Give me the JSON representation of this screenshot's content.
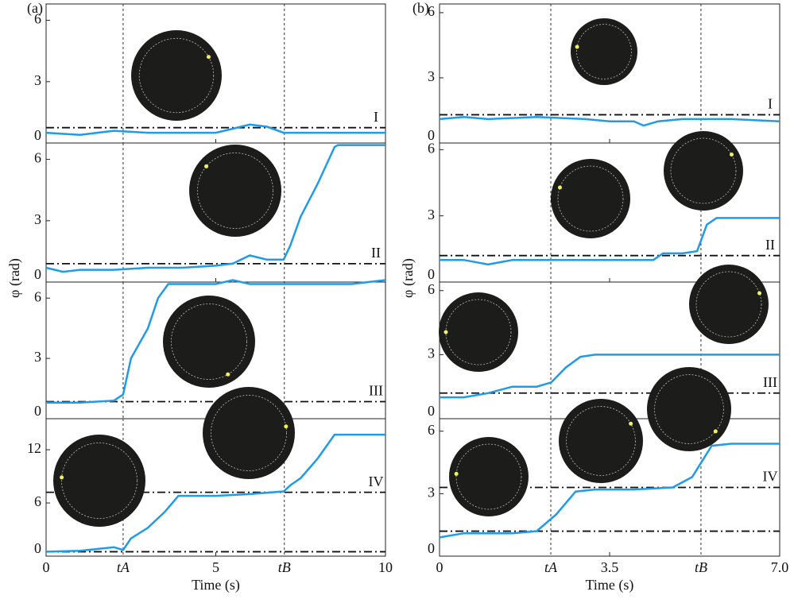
{
  "chart_data": [
    {
      "type": "line",
      "panel_label": "(a)",
      "ylabel": "φ (rad)",
      "xlabel": "Time (s)",
      "color": "#1f9be8",
      "xlim": [
        0,
        10
      ],
      "xticks": [
        0,
        {
          "value": 2.27,
          "label": "tA"
        },
        5,
        {
          "value": 7.02,
          "label": "tB"
        },
        10
      ],
      "panels": [
        {
          "annotation": "I",
          "ylim": [
            0,
            6.8
          ],
          "yticks": [
            0,
            3,
            6
          ],
          "hlines": [
            0.75
          ],
          "x": [
            0,
            1,
            2,
            3,
            4,
            5,
            5.5,
            6,
            6.5,
            7,
            8,
            9,
            10
          ],
          "values": [
            0.5,
            0.4,
            0.6,
            0.5,
            0.5,
            0.5,
            0.7,
            0.9,
            0.8,
            0.5,
            0.5,
            0.5,
            0.5
          ]
        },
        {
          "annotation": "II",
          "ylim": [
            0,
            6.8
          ],
          "yticks": [
            0,
            3,
            6
          ],
          "hlines": [
            0.9
          ],
          "x": [
            0,
            0.5,
            1,
            2,
            3,
            4,
            5,
            5.5,
            6,
            6.5,
            7,
            7.2,
            7.5,
            8,
            8.5,
            8.6,
            9,
            10
          ],
          "values": [
            0.7,
            0.5,
            0.6,
            0.6,
            0.7,
            0.7,
            0.8,
            0.9,
            1.3,
            1.1,
            1.1,
            1.8,
            3.2,
            4.8,
            6.6,
            6.7,
            6.7,
            6.7
          ]
        },
        {
          "annotation": "III",
          "ylim": [
            0,
            6.8
          ],
          "yticks": [
            0,
            3,
            6
          ],
          "hlines": [
            0.85
          ],
          "x": [
            0,
            1,
            2,
            2.27,
            2.5,
            3,
            3.3,
            3.6,
            4,
            5,
            5.5,
            6,
            7,
            8,
            9,
            10
          ],
          "values": [
            0.8,
            0.8,
            0.9,
            1.2,
            3.0,
            4.5,
            6.0,
            6.7,
            6.7,
            6.7,
            6.9,
            6.7,
            6.7,
            6.7,
            6.7,
            6.9
          ]
        },
        {
          "annotation": "IV",
          "ylim": [
            0,
            15.5
          ],
          "yticks": [
            0,
            6,
            12
          ],
          "hlines": [
            0.5,
            7.2
          ],
          "x": [
            0,
            1,
            2,
            2.27,
            2.5,
            3,
            3.5,
            3.9,
            4,
            5,
            6,
            7,
            7.2,
            7.5,
            8,
            8.5,
            9,
            10
          ],
          "values": [
            0.5,
            0.6,
            1.0,
            0.7,
            2.0,
            3.2,
            5.0,
            6.8,
            6.8,
            6.8,
            7.0,
            7.3,
            8.0,
            8.8,
            11,
            13.7,
            13.7,
            13.7
          ]
        }
      ]
    },
    {
      "type": "line",
      "panel_label": "(b)",
      "ylabel": "φ (rad)",
      "xlabel": "Time (s)",
      "color": "#1f9be8",
      "xlim": [
        0,
        7
      ],
      "xticks": [
        0,
        {
          "value": 2.29,
          "label": "tA"
        },
        3.5,
        {
          "value": 5.38,
          "label": "tB"
        },
        {
          "value": 7,
          "label": "7.0"
        }
      ],
      "panels": [
        {
          "annotation": "I",
          "ylim": [
            0,
            6.4
          ],
          "yticks": [
            0,
            3,
            6
          ],
          "hlines": [
            1.3
          ],
          "x": [
            0,
            0.5,
            1,
            2,
            3,
            3.5,
            4,
            4.2,
            4.5,
            5,
            6,
            7
          ],
          "values": [
            1.1,
            1.2,
            1.1,
            1.2,
            1.1,
            1.0,
            1.0,
            0.8,
            1.0,
            1.1,
            1.1,
            1.0
          ]
        },
        {
          "annotation": "II",
          "ylim": [
            0,
            6.3
          ],
          "yticks": [
            0,
            3,
            6
          ],
          "hlines": [
            1.2
          ],
          "x": [
            0,
            0.5,
            1,
            1.5,
            2,
            3,
            4,
            4.4,
            4.6,
            5,
            5.3,
            5.5,
            5.7,
            6,
            7
          ],
          "values": [
            1.0,
            1.0,
            0.8,
            1.0,
            1.0,
            1.0,
            1.0,
            1.0,
            1.3,
            1.3,
            1.4,
            2.6,
            2.9,
            2.9,
            2.9
          ]
        },
        {
          "annotation": "III",
          "ylim": [
            0,
            6.4
          ],
          "yticks": [
            0,
            3,
            6
          ],
          "hlines": [
            1.2
          ],
          "x": [
            0,
            0.5,
            1,
            1.5,
            2,
            2.3,
            2.6,
            2.9,
            3.2,
            4,
            5,
            5.5,
            6,
            7
          ],
          "values": [
            1.0,
            1.0,
            1.2,
            1.5,
            1.5,
            1.7,
            2.4,
            2.9,
            3.0,
            3.0,
            3.0,
            3.0,
            3.0,
            3.0
          ]
        },
        {
          "annotation": "IV",
          "ylim": [
            0,
            6.6
          ],
          "yticks": [
            0,
            3,
            6
          ],
          "hlines": [
            1.2,
            3.3
          ],
          "x": [
            0,
            0.5,
            1,
            1.5,
            2,
            2.4,
            2.8,
            3.2,
            4,
            4.8,
            5.2,
            5.6,
            6,
            7
          ],
          "values": [
            0.9,
            1.1,
            1.1,
            1.1,
            1.2,
            2.0,
            3.1,
            3.2,
            3.2,
            3.3,
            3.8,
            5.3,
            5.4,
            5.4
          ]
        }
      ]
    }
  ]
}
